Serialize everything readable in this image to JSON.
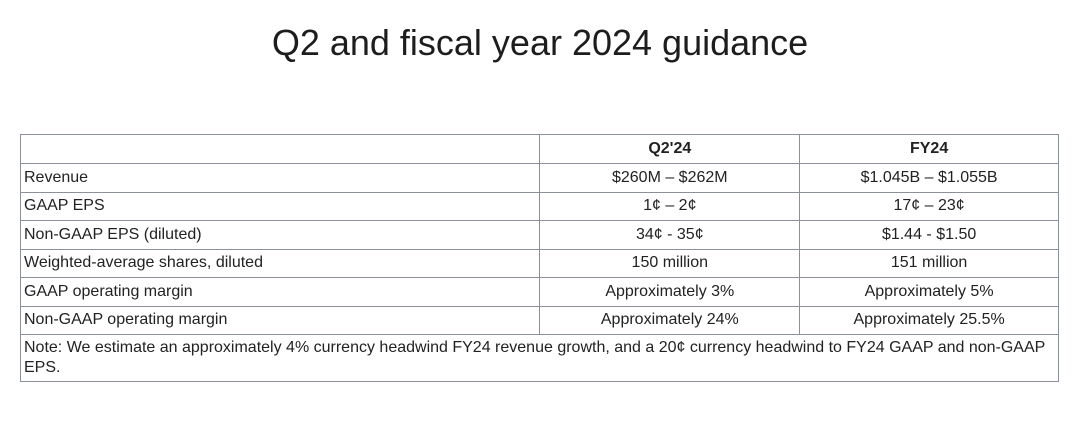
{
  "title": "Q2 and fiscal year 2024 guidance",
  "table": {
    "headers": [
      "",
      "Q2'24",
      "FY24"
    ],
    "rows": [
      [
        "Revenue",
        "$260M – $262M",
        "$1.045B – $1.055B"
      ],
      [
        "GAAP EPS",
        "1¢ – 2¢",
        "17¢ – 23¢"
      ],
      [
        "Non-GAAP EPS (diluted)",
        "34¢ - 35¢",
        "$1.44 - $1.50"
      ],
      [
        "Weighted-average shares, diluted",
        "150 million",
        "151 million"
      ],
      [
        "GAAP operating margin",
        "Approximately 3%",
        "Approximately 5%"
      ],
      [
        "Non-GAAP operating margin",
        "Approximately 24%",
        "Approximately 25.5%"
      ]
    ],
    "note": "Note: We estimate an approximately 4% currency headwind FY24 revenue growth, and a 20¢ currency headwind to FY24 GAAP and non-GAAP EPS."
  }
}
